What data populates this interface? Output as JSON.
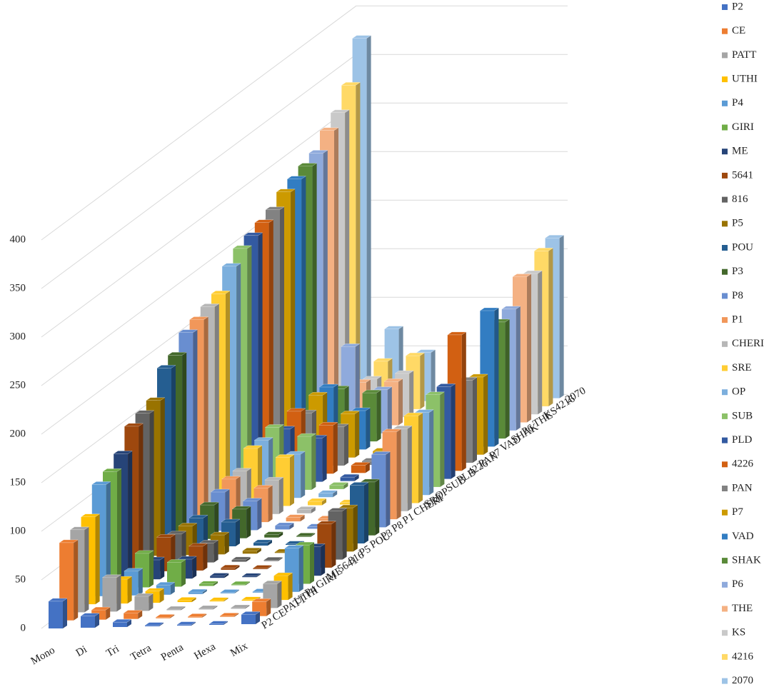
{
  "chart_data": {
    "type": "bar3d",
    "categories": [
      "Mono",
      "Di",
      "Tri",
      "Tetra",
      "Penta",
      "Hexa",
      "Mix"
    ],
    "series": [
      {
        "name": "P2",
        "color": "#4472C4",
        "values": [
          28,
          12,
          5,
          1,
          1,
          1,
          10
        ]
      },
      {
        "name": "CE",
        "color": "#ED7D31",
        "values": [
          80,
          10,
          6,
          1,
          1,
          1,
          15
        ]
      },
      {
        "name": "PATT",
        "color": "#A5A5A5",
        "values": [
          85,
          35,
          15,
          1,
          1,
          1,
          25
        ]
      },
      {
        "name": "UTHI",
        "color": "#FFC000",
        "values": [
          90,
          25,
          12,
          2,
          1,
          1,
          25
        ]
      },
      {
        "name": "P4",
        "color": "#5B9BD5",
        "values": [
          115,
          25,
          10,
          2,
          1,
          1,
          45
        ]
      },
      {
        "name": "GIRI",
        "color": "#70AD47",
        "values": [
          120,
          35,
          25,
          2,
          1,
          1,
          40
        ]
      },
      {
        "name": "ME",
        "color": "#264478",
        "values": [
          130,
          20,
          20,
          2,
          1,
          1,
          30
        ]
      },
      {
        "name": "5641",
        "color": "#9E480E",
        "values": [
          150,
          35,
          25,
          2,
          1,
          1,
          45
        ]
      },
      {
        "name": "816",
        "color": "#636363",
        "values": [
          155,
          30,
          20,
          2,
          1,
          1,
          50
        ]
      },
      {
        "name": "P5",
        "color": "#997300",
        "values": [
          160,
          30,
          20,
          3,
          1,
          1,
          45
        ]
      },
      {
        "name": "POU",
        "color": "#255E91",
        "values": [
          185,
          30,
          25,
          3,
          1,
          1,
          60
        ]
      },
      {
        "name": "P3",
        "color": "#43682B",
        "values": [
          190,
          35,
          30,
          3,
          1,
          1,
          55
        ]
      },
      {
        "name": "P8",
        "color": "#698ED0",
        "values": [
          205,
          40,
          30,
          4,
          2,
          1,
          75
        ]
      },
      {
        "name": "P1",
        "color": "#F1975A",
        "values": [
          210,
          45,
          35,
          4,
          2,
          1,
          90
        ]
      },
      {
        "name": "CHERI",
        "color": "#B7B7B7",
        "values": [
          215,
          45,
          35,
          4,
          2,
          1,
          85
        ]
      },
      {
        "name": "SRE",
        "color": "#FFCD33",
        "values": [
          220,
          60,
          50,
          4,
          2,
          1,
          90
        ]
      },
      {
        "name": "OP",
        "color": "#7CAFDD",
        "values": [
          240,
          60,
          45,
          4,
          2,
          1,
          85
        ]
      },
      {
        "name": "SUB",
        "color": "#8CC168",
        "values": [
          250,
          65,
          55,
          4,
          2,
          1,
          95
        ]
      },
      {
        "name": "PLD",
        "color": "#335AA1",
        "values": [
          255,
          55,
          45,
          4,
          2,
          1,
          95
        ]
      },
      {
        "name": "4226",
        "color": "#D26012",
        "values": [
          260,
          65,
          50,
          8,
          2,
          1,
          140
        ]
      },
      {
        "name": "PAN",
        "color": "#828282",
        "values": [
          265,
          55,
          40,
          4,
          2,
          1,
          85
        ]
      },
      {
        "name": "P7",
        "color": "#CC9A00",
        "values": [
          275,
          65,
          45,
          6,
          2,
          1,
          80
        ]
      },
      {
        "name": "VAD",
        "color": "#327DC2",
        "values": [
          280,
          65,
          40,
          4,
          2,
          1,
          140
        ]
      },
      {
        "name": "SHAK",
        "color": "#5A8A39",
        "values": [
          285,
          55,
          50,
          4,
          2,
          1,
          120
        ]
      },
      {
        "name": "P6",
        "color": "#8FAADC",
        "values": [
          290,
          90,
          45,
          4,
          2,
          1,
          125
        ]
      },
      {
        "name": "THE",
        "color": "#F4B183",
        "values": [
          305,
          45,
          45,
          4,
          2,
          1,
          150
        ]
      },
      {
        "name": "KS",
        "color": "#C9C9C9",
        "values": [
          315,
          40,
          45,
          4,
          2,
          1,
          145
        ]
      },
      {
        "name": "4216",
        "color": "#FFD966",
        "values": [
          335,
          50,
          55,
          4,
          2,
          1,
          160
        ]
      },
      {
        "name": "2070",
        "color": "#9DC3E6",
        "values": [
          375,
          75,
          50,
          4,
          2,
          1,
          165
        ]
      }
    ],
    "ylim": [
      0,
      400
    ],
    "yticks": [
      0,
      50,
      100,
      150,
      200,
      250,
      300,
      350,
      400
    ],
    "grid": true,
    "legend": "right"
  }
}
